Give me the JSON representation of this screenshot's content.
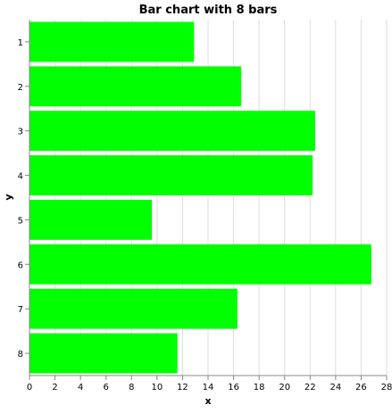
{
  "chart_data": {
    "type": "bar",
    "orientation": "horizontal",
    "title": "Bar chart with 8 bars",
    "xlabel": "x",
    "ylabel": "y",
    "categories": [
      "1",
      "2",
      "3",
      "4",
      "5",
      "6",
      "7",
      "8"
    ],
    "values": [
      12.9,
      16.6,
      22.4,
      22.2,
      9.6,
      26.8,
      16.3,
      11.6
    ],
    "xlim": [
      0,
      28
    ],
    "xticks": [
      0,
      2,
      4,
      6,
      8,
      10,
      12,
      14,
      16,
      18,
      20,
      22,
      24,
      26,
      28
    ],
    "grid": "vertical",
    "bar_color": "#00ff00",
    "grid_color": "#dddddd",
    "axis_color": "#888888",
    "text_color": "#000000"
  }
}
